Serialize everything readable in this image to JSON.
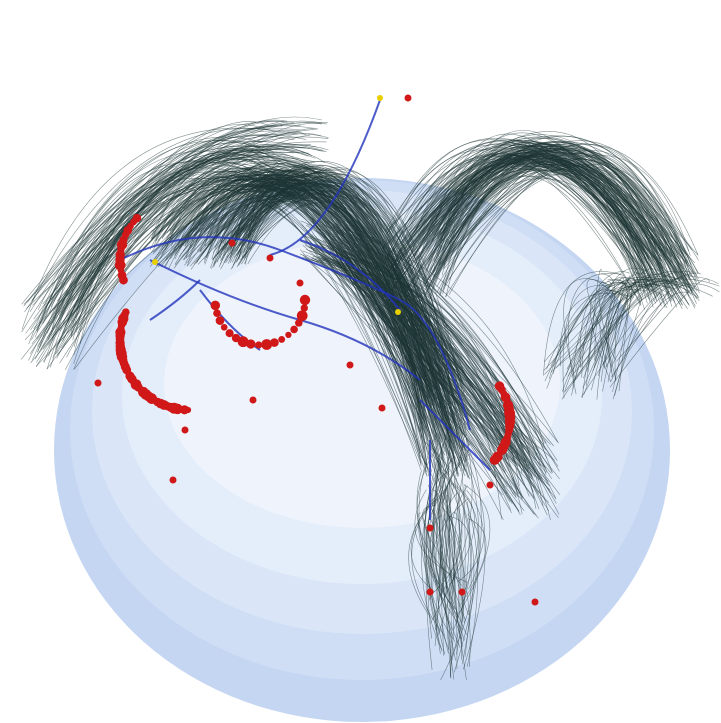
{
  "figure": {
    "title": "",
    "colors": {
      "background": "#ffffff",
      "sphere_rings": [
        "#c4d6f2",
        "#cfdef5",
        "#dae6f8",
        "#e4edfa",
        "#eef3fc"
      ],
      "dense_edges": "#1e3434",
      "tree_edges": "#2233bb",
      "node": "#d01818",
      "highlight_node": "#e8d000"
    }
  }
}
